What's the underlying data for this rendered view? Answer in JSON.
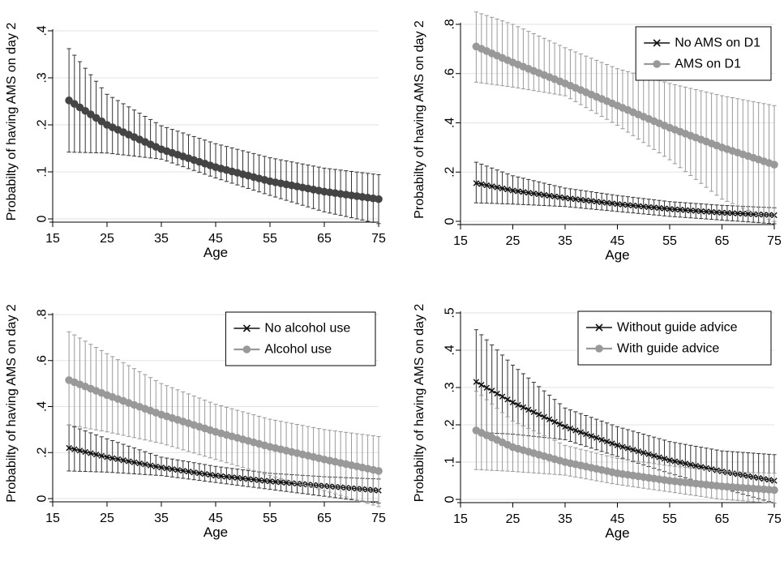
{
  "chart_data": [
    {
      "type": "line",
      "title": "",
      "xlabel": "Age",
      "ylabel": "Probabilty of having AMS on day 2",
      "xlim": [
        15,
        75
      ],
      "ylim": [
        0,
        0.4
      ],
      "xticks": [
        15,
        25,
        35,
        45,
        55,
        65,
        75
      ],
      "xtick_labels": [
        "15",
        "25",
        "35",
        "45",
        "55",
        "65",
        "75"
      ],
      "yticks": [
        0,
        0.1,
        0.2,
        0.3,
        0.4
      ],
      "ytick_labels": [
        "0",
        ".1",
        ".2",
        ".3",
        ".4"
      ],
      "grid": true,
      "legend": null,
      "age_range": [
        18,
        75
      ],
      "series": [
        {
          "color": "#444444",
          "marker": "circle",
          "x": [
            18,
            25,
            35,
            45,
            55,
            65,
            75
          ],
          "y": [
            0.252,
            0.2,
            0.148,
            0.11,
            0.08,
            0.058,
            0.042
          ],
          "ci_lower": [
            0.142,
            0.14,
            0.127,
            0.087,
            0.05,
            0.015,
            -0.01
          ],
          "ci_upper": [
            0.362,
            0.265,
            0.198,
            0.16,
            0.13,
            0.108,
            0.094
          ]
        }
      ]
    },
    {
      "type": "line",
      "title": "",
      "xlabel": "Age",
      "ylabel": "Probabilty of having AMS on day 2",
      "xlim": [
        15,
        75
      ],
      "ylim": [
        0,
        0.8
      ],
      "xticks": [
        15,
        25,
        35,
        45,
        55,
        65,
        75
      ],
      "xtick_labels": [
        "15",
        "25",
        "35",
        "45",
        "55",
        "65",
        "75"
      ],
      "yticks": [
        0,
        0.2,
        0.4,
        0.6,
        0.8
      ],
      "ytick_labels": [
        "0",
        ".2",
        ".4",
        ".6",
        ".8"
      ],
      "grid": true,
      "legend": "top-right",
      "age_range": [
        18,
        75
      ],
      "series": [
        {
          "name": "No AMS on D1",
          "color": "#111111",
          "marker": "x",
          "x": [
            18,
            25,
            35,
            45,
            55,
            65,
            75
          ],
          "y": [
            0.155,
            0.125,
            0.095,
            0.07,
            0.05,
            0.035,
            0.025
          ],
          "ci_lower": [
            0.075,
            0.07,
            0.06,
            0.04,
            0.02,
            0.005,
            -0.01
          ],
          "ci_upper": [
            0.24,
            0.185,
            0.135,
            0.105,
            0.08,
            0.065,
            0.055
          ]
        },
        {
          "name": "AMS on D1",
          "color": "#999999",
          "marker": "circle",
          "x": [
            18,
            25,
            35,
            45,
            55,
            65,
            75
          ],
          "y": [
            0.71,
            0.645,
            0.56,
            0.47,
            0.38,
            0.3,
            0.23
          ],
          "ci_lower": [
            0.565,
            0.545,
            0.51,
            0.39,
            0.25,
            0.09,
            0.0
          ],
          "ci_upper": [
            0.85,
            0.8,
            0.705,
            0.62,
            0.56,
            0.51,
            0.47
          ]
        }
      ]
    },
    {
      "type": "line",
      "title": "",
      "xlabel": "Age",
      "ylabel": "Probabilty of having AMS on day 2",
      "xlim": [
        15,
        75
      ],
      "ylim": [
        0,
        0.8
      ],
      "xticks": [
        15,
        25,
        35,
        45,
        55,
        65,
        75
      ],
      "xtick_labels": [
        "15",
        "25",
        "35",
        "45",
        "55",
        "65",
        "75"
      ],
      "yticks": [
        0,
        0.2,
        0.4,
        0.6,
        0.8
      ],
      "ytick_labels": [
        "0",
        ".2",
        ".4",
        ".6",
        ".8"
      ],
      "grid": true,
      "legend": "top-right",
      "age_range": [
        18,
        75
      ],
      "series": [
        {
          "name": "No alcohol use",
          "color": "#111111",
          "marker": "x",
          "x": [
            18,
            25,
            35,
            45,
            55,
            65,
            75
          ],
          "y": [
            0.22,
            0.18,
            0.135,
            0.1,
            0.075,
            0.055,
            0.035
          ],
          "ci_lower": [
            0.12,
            0.115,
            0.1,
            0.07,
            0.04,
            0.01,
            -0.02
          ],
          "ci_upper": [
            0.32,
            0.26,
            0.18,
            0.14,
            0.11,
            0.095,
            0.085
          ]
        },
        {
          "name": "Alcohol use",
          "color": "#999999",
          "marker": "circle",
          "x": [
            18,
            25,
            35,
            45,
            55,
            65,
            75
          ],
          "y": [
            0.515,
            0.45,
            0.365,
            0.29,
            0.225,
            0.17,
            0.12
          ],
          "ci_lower": [
            0.32,
            0.29,
            0.24,
            0.17,
            0.1,
            0.035,
            -0.035
          ],
          "ci_upper": [
            0.725,
            0.63,
            0.5,
            0.41,
            0.345,
            0.3,
            0.27
          ]
        }
      ]
    },
    {
      "type": "line",
      "title": "",
      "xlabel": "Age",
      "ylabel": "Probabilty of having AMS on day 2",
      "xlim": [
        15,
        75
      ],
      "ylim": [
        0,
        0.5
      ],
      "xticks": [
        15,
        25,
        35,
        45,
        55,
        65,
        75
      ],
      "xtick_labels": [
        "15",
        "25",
        "35",
        "45",
        "55",
        "65",
        "75"
      ],
      "yticks": [
        0,
        0.1,
        0.2,
        0.3,
        0.4,
        0.5
      ],
      "ytick_labels": [
        "0",
        ".1",
        ".2",
        ".3",
        ".4",
        ".5"
      ],
      "grid": true,
      "legend": "top-right",
      "age_range": [
        18,
        75
      ],
      "series": [
        {
          "name": "Without guide advice",
          "color": "#111111",
          "marker": "x",
          "x": [
            18,
            25,
            35,
            45,
            55,
            65,
            75
          ],
          "y": [
            0.315,
            0.26,
            0.195,
            0.145,
            0.105,
            0.075,
            0.05
          ],
          "ci_lower": [
            0.18,
            0.175,
            0.16,
            0.115,
            0.07,
            0.03,
            -0.01
          ],
          "ci_upper": [
            0.455,
            0.36,
            0.245,
            0.195,
            0.155,
            0.13,
            0.12
          ]
        },
        {
          "name": "With guide advice",
          "color": "#999999",
          "marker": "circle",
          "x": [
            18,
            25,
            35,
            45,
            55,
            65,
            75
          ],
          "y": [
            0.185,
            0.14,
            0.1,
            0.07,
            0.05,
            0.035,
            0.025
          ],
          "ci_lower": [
            0.08,
            0.075,
            0.065,
            0.04,
            0.02,
            0.0,
            -0.01
          ],
          "ci_upper": [
            0.29,
            0.21,
            0.145,
            0.11,
            0.09,
            0.075,
            0.07
          ]
        }
      ]
    }
  ]
}
